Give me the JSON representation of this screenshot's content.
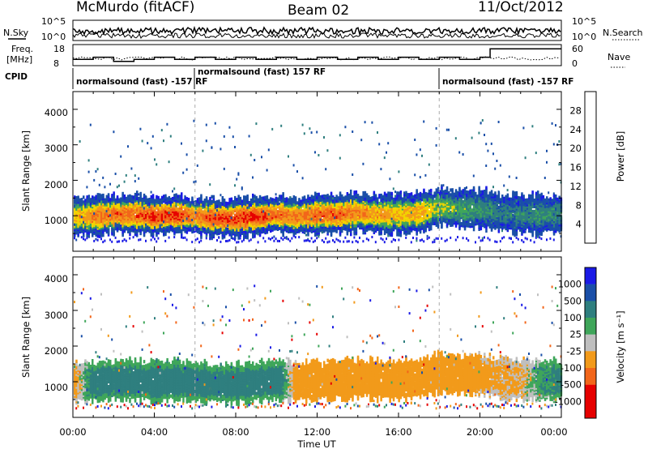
{
  "header": {
    "station": "McMurdo (fitACF)",
    "beam": "Beam 02",
    "date": "11/Oct/2012"
  },
  "noise_panel": {
    "left_label": "N.Sky",
    "right_label": "N.Search",
    "left_ticks": [
      "10^5",
      "10^0"
    ],
    "right_ticks": [
      "10^5",
      "10^0"
    ]
  },
  "freq_panel": {
    "left_label_1": "Freq.",
    "left_label_2": "[MHz]",
    "right_label": "Nave",
    "left_ticks": [
      "18",
      "8"
    ],
    "right_ticks": [
      "60",
      "0"
    ]
  },
  "cpid_panel": {
    "label": "CPID",
    "segments": [
      {
        "text": "normalsound (fast) -157 RF",
        "start_hour": 0,
        "end_hour": 6
      },
      {
        "text": "normalsound (fast) 157 RF",
        "start_hour": 6,
        "end_hour": 18
      },
      {
        "text": "normalsound (fast) -157 RF",
        "start_hour": 18,
        "end_hour": 24
      }
    ]
  },
  "power_panel": {
    "ylabel": "Slant Range [km]",
    "yticks": [
      "1000",
      "2000",
      "3000",
      "4000"
    ],
    "colorbar_label": "Power [dB]",
    "colorbar_ticks": [
      "4",
      "8",
      "12",
      "16",
      "20",
      "24",
      "28"
    ],
    "colors": [
      "#1a1ae6",
      "#1a4fa8",
      "#2f7f7f",
      "#3fa65a",
      "#f2d400",
      "#f29a1a",
      "#f2661a",
      "#e60000"
    ]
  },
  "velocity_panel": {
    "ylabel": "Slant Range [km]",
    "yticks": [
      "1000",
      "2000",
      "3000",
      "4000"
    ],
    "colorbar_label": "Velocity [m s⁻¹]",
    "colorbar_ticks": [
      "1000",
      "500",
      "100",
      "25",
      "-25",
      "-100",
      "-500",
      "-1000"
    ],
    "colors": [
      "#1a1ae6",
      "#1a4fa8",
      "#2f7f7f",
      "#3fa65a",
      "#bfbfbf",
      "#f29a1a",
      "#f2661a",
      "#e60000"
    ]
  },
  "x_axis": {
    "label": "Time UT",
    "ticks": [
      "00:00",
      "04:00",
      "08:00",
      "12:00",
      "16:00",
      "20:00",
      "00:00"
    ]
  },
  "chart_data": {
    "type": "heatmap",
    "x_unit": "hours UT",
    "xlim": [
      0,
      24
    ],
    "ylim": [
      0,
      4500
    ],
    "power_ylim_colorbar": [
      0,
      32
    ],
    "backscatter_band_center_km": [
      [
        0,
        1000
      ],
      [
        1,
        1000
      ],
      [
        2,
        1050
      ],
      [
        3,
        1050
      ],
      [
        4,
        1000
      ],
      [
        5,
        1050
      ],
      [
        6,
        1000
      ],
      [
        7,
        950
      ],
      [
        8,
        950
      ],
      [
        9,
        1000
      ],
      [
        10,
        1050
      ],
      [
        11,
        1000
      ],
      [
        12,
        1050
      ],
      [
        13,
        1050
      ],
      [
        14,
        1100
      ],
      [
        15,
        1050
      ],
      [
        16,
        1050
      ],
      [
        17,
        1100
      ],
      [
        18,
        1250
      ],
      [
        19,
        1200
      ],
      [
        20,
        1200
      ],
      [
        21,
        1100
      ],
      [
        22,
        1050
      ],
      [
        23,
        1050
      ],
      [
        24,
        1050
      ]
    ],
    "power_band_peak_db": [
      [
        0,
        20
      ],
      [
        1,
        24
      ],
      [
        2,
        26
      ],
      [
        3,
        26
      ],
      [
        4,
        28
      ],
      [
        5,
        28
      ],
      [
        6,
        24
      ],
      [
        7,
        28
      ],
      [
        8,
        28
      ],
      [
        9,
        28
      ],
      [
        10,
        26
      ],
      [
        11,
        24
      ],
      [
        12,
        26
      ],
      [
        13,
        26
      ],
      [
        14,
        24
      ],
      [
        15,
        22
      ],
      [
        16,
        20
      ],
      [
        17,
        22
      ],
      [
        18,
        16
      ],
      [
        19,
        14
      ],
      [
        20,
        12
      ],
      [
        21,
        10
      ],
      [
        22,
        10
      ],
      [
        23,
        12
      ],
      [
        24,
        10
      ]
    ],
    "velocity_band_ms": [
      [
        0,
        -100
      ],
      [
        1,
        200
      ],
      [
        2,
        300
      ],
      [
        3,
        200
      ],
      [
        4,
        300
      ],
      [
        5,
        200
      ],
      [
        6,
        250
      ],
      [
        7,
        300
      ],
      [
        8,
        250
      ],
      [
        9,
        200
      ],
      [
        10,
        250
      ],
      [
        11,
        -150
      ],
      [
        12,
        -200
      ],
      [
        13,
        -250
      ],
      [
        14,
        -200
      ],
      [
        15,
        -150
      ],
      [
        16,
        -150
      ],
      [
        17,
        -200
      ],
      [
        18,
        -250
      ],
      [
        19,
        -200
      ],
      [
        20,
        -100
      ],
      [
        21,
        -50
      ],
      [
        22,
        -50
      ],
      [
        23,
        100
      ],
      [
        24,
        150
      ]
    ],
    "freq_mhz_steps": [
      [
        0,
        11
      ],
      [
        1,
        12
      ],
      [
        2,
        10
      ],
      [
        3,
        11
      ],
      [
        4,
        12
      ],
      [
        5,
        11
      ],
      [
        6,
        12
      ],
      [
        7,
        11
      ],
      [
        8,
        12
      ],
      [
        9,
        11
      ],
      [
        10,
        12
      ],
      [
        11,
        11
      ],
      [
        12,
        12
      ],
      [
        13,
        11
      ],
      [
        14,
        12
      ],
      [
        15,
        11
      ],
      [
        16,
        12
      ],
      [
        17,
        11
      ],
      [
        18,
        12
      ],
      [
        19,
        11
      ],
      [
        20,
        12
      ],
      [
        20.5,
        16
      ],
      [
        24,
        16
      ]
    ]
  }
}
